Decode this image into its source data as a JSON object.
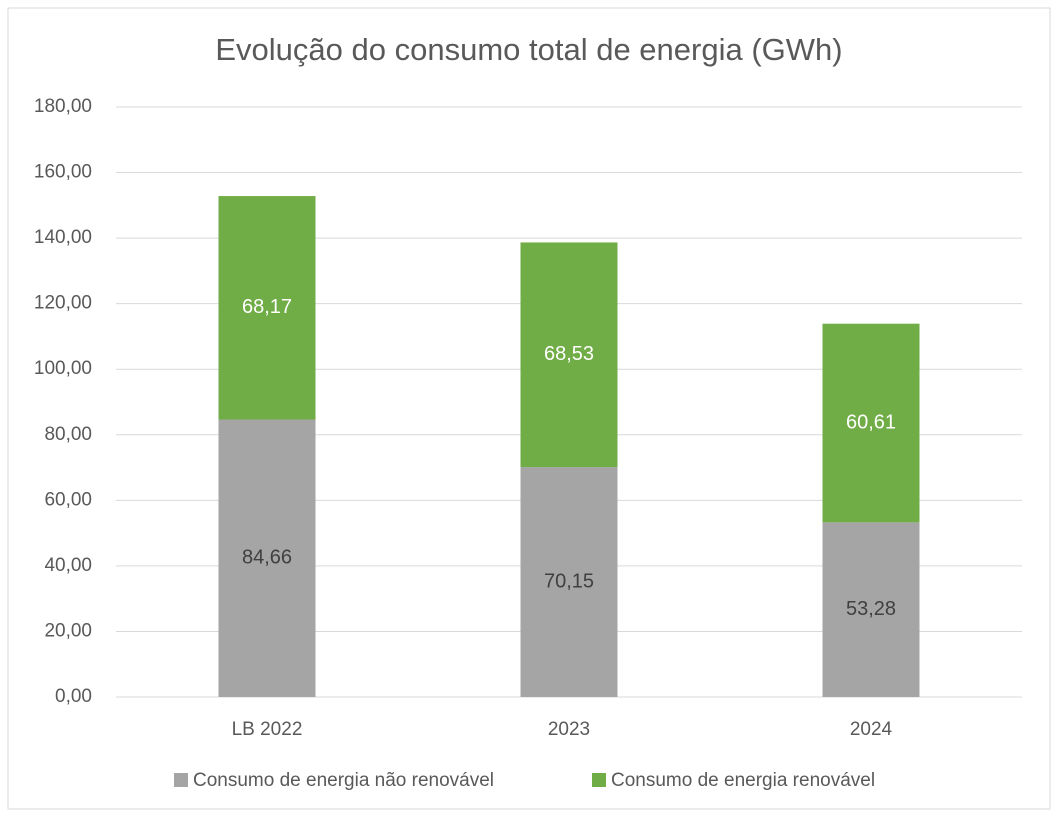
{
  "chart_data": {
    "type": "stacked_bar",
    "title": "Evolução do consumo total de energia  (GWh)",
    "categories": [
      "LB 2022",
      "2023",
      "2024"
    ],
    "series": [
      {
        "name": "Consumo de energia não renovável",
        "color": "#a5a5a5",
        "values": [
          84.66,
          70.15,
          53.28
        ],
        "value_labels": [
          "84,66",
          "70,15",
          "53,28"
        ]
      },
      {
        "name": "Consumo de energia renovável",
        "color": "#70ad47",
        "values": [
          68.17,
          68.53,
          60.61
        ],
        "value_labels": [
          "68,17",
          "68,53",
          "60,61"
        ]
      }
    ],
    "ylim": [
      0,
      180
    ],
    "yticks": [
      {
        "value": 0,
        "label": "0,00"
      },
      {
        "value": 20,
        "label": "20,00"
      },
      {
        "value": 40,
        "label": "40,00"
      },
      {
        "value": 60,
        "label": "60,00"
      },
      {
        "value": 80,
        "label": "80,00"
      },
      {
        "value": 100,
        "label": "100,00"
      },
      {
        "value": 120,
        "label": "120,00"
      },
      {
        "value": 140,
        "label": "140,00"
      },
      {
        "value": 160,
        "label": "160,00"
      },
      {
        "value": 180,
        "label": "180,00"
      }
    ],
    "grid": true,
    "legend": "bottom"
  }
}
